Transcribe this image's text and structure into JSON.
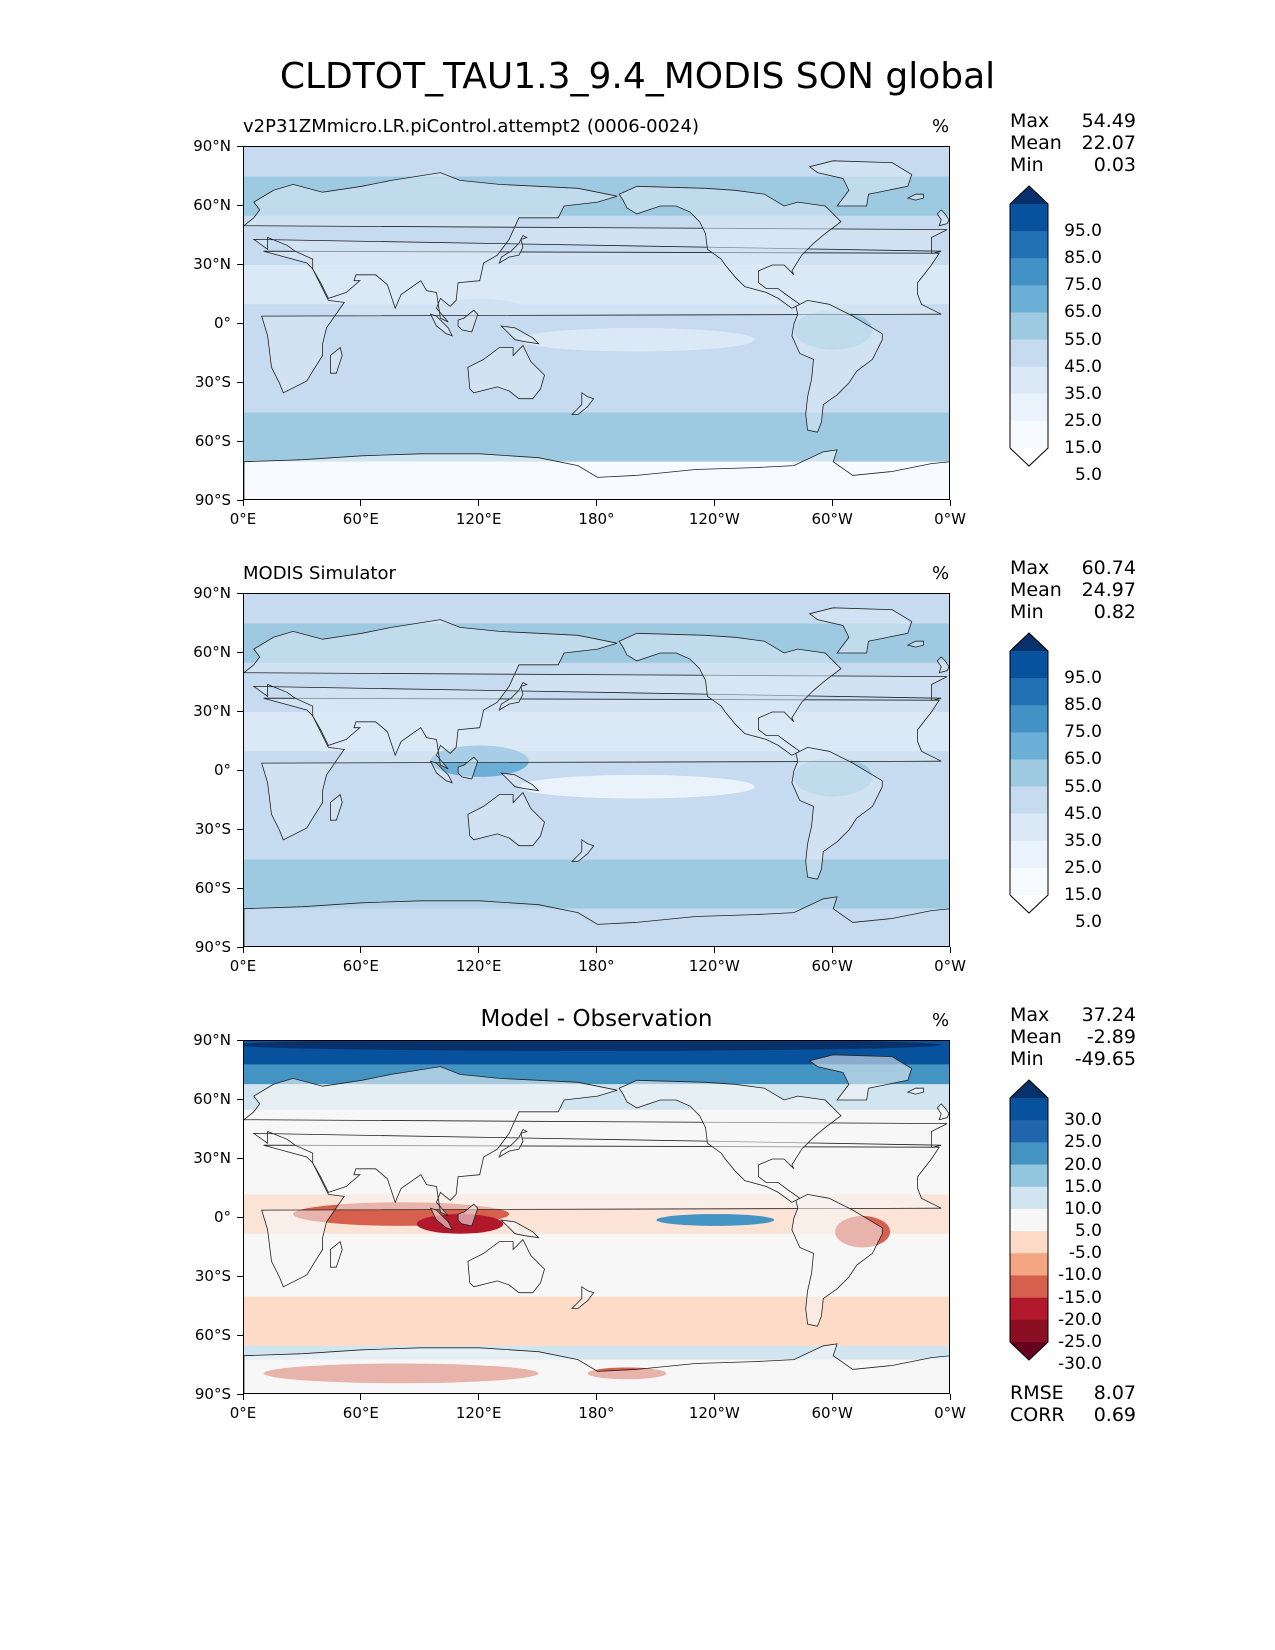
{
  "title": "CLDTOT_TAU1.3_9.4_MODIS SON global",
  "axes": {
    "lat_ticks": [
      "90°N",
      "60°N",
      "30°N",
      "0°",
      "30°S",
      "60°S",
      "90°S"
    ],
    "lon_ticks": [
      "0°E",
      "60°E",
      "120°E",
      "180°",
      "120°W",
      "60°W",
      "0°W"
    ]
  },
  "chart_data": [
    {
      "type": "heatmap",
      "title": "v2P31ZMmicro.LR.piControl.attempt2 (0006-0024)",
      "units": "%",
      "stats": {
        "max_label": "Max",
        "max": "54.49",
        "mean_label": "Mean",
        "mean": "22.07",
        "min_label": "Min",
        "min": "0.03"
      },
      "colorbar": {
        "levels": [
          "95.0",
          "85.0",
          "75.0",
          "65.0",
          "55.0",
          "45.0",
          "35.0",
          "25.0",
          "15.0",
          "5.0"
        ],
        "colors": [
          "#08306b",
          "#08519c",
          "#2171b5",
          "#4292c6",
          "#6baed6",
          "#9ecae1",
          "#c6dbef",
          "#dbe9f6",
          "#eaf3fb",
          "#f7fbff",
          "#ffffff"
        ]
      },
      "field_colors": {
        "land": "#dbe9f6",
        "ocean": "#c6dbef",
        "band": "#9ecae1",
        "polar": "#f7fbff"
      },
      "xlim": [
        0,
        360
      ],
      "ylim": [
        -90,
        90
      ]
    },
    {
      "type": "heatmap",
      "title": "MODIS Simulator",
      "units": "%",
      "stats": {
        "max_label": "Max",
        "max": "60.74",
        "mean_label": "Mean",
        "mean": "24.97",
        "min_label": "Min",
        "min": "0.82"
      },
      "colorbar": {
        "levels": [
          "95.0",
          "85.0",
          "75.0",
          "65.0",
          "55.0",
          "45.0",
          "35.0",
          "25.0",
          "15.0",
          "5.0"
        ],
        "colors": [
          "#08306b",
          "#08519c",
          "#2171b5",
          "#4292c6",
          "#6baed6",
          "#9ecae1",
          "#c6dbef",
          "#dbe9f6",
          "#eaf3fb",
          "#f7fbff",
          "#ffffff"
        ]
      },
      "field_colors": {
        "land": "#dbe9f6",
        "ocean": "#c6dbef",
        "band": "#9ecae1",
        "polar": "#c6dbef"
      },
      "xlim": [
        0,
        360
      ],
      "ylim": [
        -90,
        90
      ]
    },
    {
      "type": "heatmap",
      "title": "Model - Observation",
      "units": "%",
      "stats": {
        "max_label": "Max",
        "max": "37.24",
        "mean_label": "Mean",
        "mean": "-2.89",
        "min_label": "Min",
        "min": "-49.65"
      },
      "colorbar": {
        "levels": [
          "30.0",
          "25.0",
          "20.0",
          "15.0",
          "10.0",
          "5.0",
          "-5.0",
          "-10.0",
          "-15.0",
          "-20.0",
          "-25.0",
          "-30.0"
        ],
        "colors": [
          "#08306b",
          "#08519c",
          "#2166ac",
          "#4393c3",
          "#92c5de",
          "#d1e5f0",
          "#f7f7f7",
          "#fddbc7",
          "#f4a582",
          "#d6604d",
          "#b2182b",
          "#8b0f22",
          "#67001f"
        ]
      },
      "field_colors": {
        "land": "#f7f7f7",
        "ocean": "#fbe3d6",
        "band": "#f4a582",
        "polar": "#b2182b"
      },
      "metrics": {
        "rmse_label": "RMSE",
        "rmse": "8.07",
        "corr_label": "CORR",
        "corr": "0.69"
      },
      "xlim": [
        0,
        360
      ],
      "ylim": [
        -90,
        90
      ]
    }
  ]
}
